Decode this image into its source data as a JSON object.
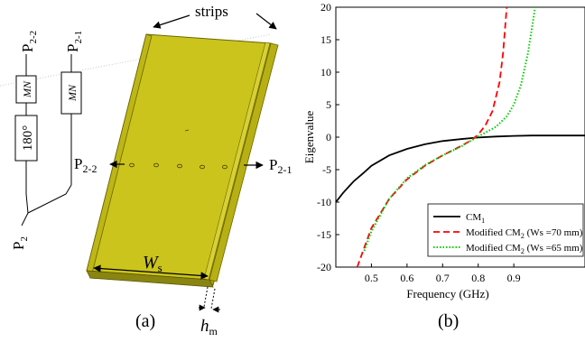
{
  "figure": {
    "panel_a_label": "(a)",
    "panel_b_label": "(b)",
    "schematic": {
      "strips_label": "strips",
      "port_p2": {
        "main": "P",
        "sub": "2"
      },
      "port_p22": {
        "main": "P",
        "sub": "2-2"
      },
      "port_p21": {
        "main": "P",
        "sub": "2-1"
      },
      "port_p22_side": {
        "main": "P",
        "sub": "2-2"
      },
      "port_p21_side": {
        "main": "P",
        "sub": "2-1"
      },
      "mn_label_left": "MN",
      "mn_label_right": "MN",
      "phase_label": "180°",
      "ws_label": {
        "main": "W",
        "sub": "s"
      },
      "hm_label": {
        "main": "h",
        "sub": "m"
      },
      "board_color": "#c9c21a"
    }
  },
  "chart_data": {
    "type": "line",
    "xlabel": "Frequency (GHz)",
    "ylabel": "Eigenvalue",
    "xlim": [
      0.4,
      1.1
    ],
    "ylim": [
      -20,
      20
    ],
    "xticks": [
      0.5,
      0.6,
      0.7,
      0.8,
      0.9
    ],
    "yticks": [
      -20,
      -15,
      -10,
      -5,
      0,
      5,
      10,
      15,
      20
    ],
    "grid": false,
    "legend_position": "bottom-right",
    "series": [
      {
        "name": "CM",
        "name_sub": "1",
        "name_suffix": "",
        "color": "#000000",
        "style": "solid",
        "points": [
          [
            0.4,
            -10.0
          ],
          [
            0.42,
            -8.6
          ],
          [
            0.45,
            -6.8
          ],
          [
            0.48,
            -5.4
          ],
          [
            0.5,
            -4.4
          ],
          [
            0.55,
            -2.8
          ],
          [
            0.6,
            -1.8
          ],
          [
            0.65,
            -1.1
          ],
          [
            0.7,
            -0.6
          ],
          [
            0.75,
            -0.3
          ],
          [
            0.8,
            -0.05
          ],
          [
            0.85,
            0.1
          ],
          [
            0.9,
            0.2
          ],
          [
            0.95,
            0.25
          ],
          [
            1.0,
            0.25
          ],
          [
            1.1,
            0.25
          ]
        ]
      },
      {
        "name": "Modified CM",
        "name_sub": "2",
        "name_suffix": " (Ws =70 mm)",
        "color": "#ff0000",
        "style": "dashed",
        "points": [
          [
            0.46,
            -20.0
          ],
          [
            0.48,
            -17.0
          ],
          [
            0.5,
            -14.0
          ],
          [
            0.55,
            -9.5
          ],
          [
            0.6,
            -6.5
          ],
          [
            0.65,
            -4.4
          ],
          [
            0.7,
            -2.8
          ],
          [
            0.75,
            -1.4
          ],
          [
            0.78,
            -0.5
          ],
          [
            0.8,
            0.4
          ],
          [
            0.82,
            1.8
          ],
          [
            0.84,
            4.0
          ],
          [
            0.86,
            8.5
          ],
          [
            0.87,
            13.0
          ],
          [
            0.88,
            20.0
          ]
        ]
      },
      {
        "name": "Modified CM",
        "name_sub": "2",
        "name_suffix": " (Ws =65 mm)",
        "color": "#00cc00",
        "style": "dotted",
        "points": [
          [
            0.48,
            -17.5
          ],
          [
            0.5,
            -14.5
          ],
          [
            0.55,
            -9.5
          ],
          [
            0.6,
            -6.3
          ],
          [
            0.65,
            -4.3
          ],
          [
            0.7,
            -2.8
          ],
          [
            0.75,
            -1.5
          ],
          [
            0.8,
            0.1
          ],
          [
            0.85,
            1.6
          ],
          [
            0.88,
            3.2
          ],
          [
            0.9,
            5.0
          ],
          [
            0.92,
            8.0
          ],
          [
            0.94,
            13.0
          ],
          [
            0.96,
            20.0
          ]
        ]
      }
    ]
  }
}
